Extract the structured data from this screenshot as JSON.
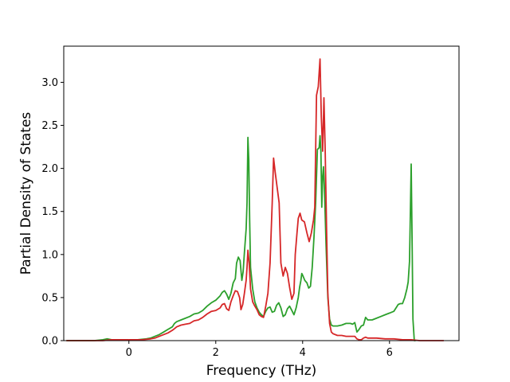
{
  "chart_data": {
    "type": "line",
    "title": "",
    "xlabel": "Frequency (THz)",
    "ylabel": "Partial Density of States",
    "xlim": [
      -1.5,
      7.6
    ],
    "ylim": [
      0.0,
      3.42
    ],
    "x_ticks": [
      0,
      2,
      4,
      6
    ],
    "x_tick_labels": [
      "0",
      "2",
      "4",
      "6"
    ],
    "y_ticks": [
      0.0,
      0.5,
      1.0,
      1.5,
      2.0,
      2.5,
      3.0
    ],
    "y_tick_labels": [
      "0.0",
      "0.5",
      "1.0",
      "1.5",
      "2.0",
      "2.5",
      "3.0"
    ],
    "grid": false,
    "series": [
      {
        "color": "#2ca02c",
        "points": [
          [
            -1.44,
            0.0
          ],
          [
            -0.8,
            0.0
          ],
          [
            -0.6,
            0.01
          ],
          [
            -0.5,
            0.02
          ],
          [
            -0.4,
            0.01
          ],
          [
            -0.2,
            0.01
          ],
          [
            0.0,
            0.01
          ],
          [
            0.2,
            0.01
          ],
          [
            0.4,
            0.02
          ],
          [
            0.5,
            0.03
          ],
          [
            0.6,
            0.05
          ],
          [
            0.7,
            0.07
          ],
          [
            0.8,
            0.1
          ],
          [
            0.9,
            0.13
          ],
          [
            1.0,
            0.16
          ],
          [
            1.05,
            0.2
          ],
          [
            1.1,
            0.22
          ],
          [
            1.2,
            0.24
          ],
          [
            1.3,
            0.26
          ],
          [
            1.4,
            0.28
          ],
          [
            1.5,
            0.31
          ],
          [
            1.6,
            0.32
          ],
          [
            1.7,
            0.35
          ],
          [
            1.8,
            0.4
          ],
          [
            1.9,
            0.44
          ],
          [
            2.0,
            0.47
          ],
          [
            2.1,
            0.52
          ],
          [
            2.15,
            0.56
          ],
          [
            2.2,
            0.58
          ],
          [
            2.25,
            0.54
          ],
          [
            2.3,
            0.48
          ],
          [
            2.35,
            0.55
          ],
          [
            2.4,
            0.67
          ],
          [
            2.45,
            0.72
          ],
          [
            2.48,
            0.9
          ],
          [
            2.52,
            0.97
          ],
          [
            2.56,
            0.93
          ],
          [
            2.6,
            0.7
          ],
          [
            2.63,
            0.8
          ],
          [
            2.66,
            1.02
          ],
          [
            2.7,
            1.3
          ],
          [
            2.72,
            1.6
          ],
          [
            2.74,
            2.36
          ],
          [
            2.76,
            2.1
          ],
          [
            2.78,
            1.4
          ],
          [
            2.8,
            0.85
          ],
          [
            2.85,
            0.6
          ],
          [
            2.9,
            0.45
          ],
          [
            2.95,
            0.38
          ],
          [
            3.0,
            0.33
          ],
          [
            3.05,
            0.3
          ],
          [
            3.1,
            0.28
          ],
          [
            3.15,
            0.34
          ],
          [
            3.2,
            0.38
          ],
          [
            3.25,
            0.39
          ],
          [
            3.3,
            0.33
          ],
          [
            3.35,
            0.34
          ],
          [
            3.4,
            0.41
          ],
          [
            3.45,
            0.44
          ],
          [
            3.5,
            0.38
          ],
          [
            3.55,
            0.28
          ],
          [
            3.6,
            0.3
          ],
          [
            3.65,
            0.37
          ],
          [
            3.7,
            0.4
          ],
          [
            3.75,
            0.35
          ],
          [
            3.8,
            0.3
          ],
          [
            3.85,
            0.38
          ],
          [
            3.9,
            0.5
          ],
          [
            3.93,
            0.62
          ],
          [
            3.96,
            0.7
          ],
          [
            3.98,
            0.78
          ],
          [
            4.0,
            0.76
          ],
          [
            4.05,
            0.7
          ],
          [
            4.1,
            0.67
          ],
          [
            4.14,
            0.61
          ],
          [
            4.18,
            0.63
          ],
          [
            4.22,
            0.85
          ],
          [
            4.26,
            1.2
          ],
          [
            4.3,
            1.6
          ],
          [
            4.34,
            2.22
          ],
          [
            4.38,
            2.24
          ],
          [
            4.4,
            2.38
          ],
          [
            4.42,
            2.2
          ],
          [
            4.44,
            1.55
          ],
          [
            4.46,
            1.9
          ],
          [
            4.48,
            2.02
          ],
          [
            4.5,
            1.8
          ],
          [
            4.54,
            1.1
          ],
          [
            4.58,
            0.5
          ],
          [
            4.62,
            0.25
          ],
          [
            4.66,
            0.18
          ],
          [
            4.7,
            0.17
          ],
          [
            4.8,
            0.17
          ],
          [
            4.9,
            0.18
          ],
          [
            5.0,
            0.2
          ],
          [
            5.1,
            0.2
          ],
          [
            5.15,
            0.19
          ],
          [
            5.2,
            0.21
          ],
          [
            5.25,
            0.1
          ],
          [
            5.3,
            0.13
          ],
          [
            5.35,
            0.17
          ],
          [
            5.4,
            0.18
          ],
          [
            5.45,
            0.27
          ],
          [
            5.5,
            0.24
          ],
          [
            5.6,
            0.24
          ],
          [
            5.7,
            0.26
          ],
          [
            5.8,
            0.28
          ],
          [
            5.9,
            0.3
          ],
          [
            6.0,
            0.32
          ],
          [
            6.1,
            0.34
          ],
          [
            6.15,
            0.38
          ],
          [
            6.2,
            0.42
          ],
          [
            6.25,
            0.43
          ],
          [
            6.3,
            0.43
          ],
          [
            6.35,
            0.5
          ],
          [
            6.4,
            0.6
          ],
          [
            6.43,
            0.68
          ],
          [
            6.46,
            0.92
          ],
          [
            6.48,
            1.5
          ],
          [
            6.5,
            2.05
          ],
          [
            6.52,
            1.2
          ],
          [
            6.54,
            0.25
          ],
          [
            6.57,
            0.0
          ],
          [
            6.6,
            0.0
          ]
        ]
      },
      {
        "color": "#d62728",
        "points": [
          [
            -1.44,
            0.0
          ],
          [
            -0.8,
            0.0
          ],
          [
            -0.6,
            0.0
          ],
          [
            -0.4,
            0.01
          ],
          [
            -0.2,
            0.01
          ],
          [
            0.0,
            0.01
          ],
          [
            0.2,
            0.01
          ],
          [
            0.3,
            0.01
          ],
          [
            0.5,
            0.02
          ],
          [
            0.6,
            0.03
          ],
          [
            0.7,
            0.05
          ],
          [
            0.8,
            0.07
          ],
          [
            0.9,
            0.09
          ],
          [
            1.0,
            0.12
          ],
          [
            1.05,
            0.14
          ],
          [
            1.1,
            0.16
          ],
          [
            1.2,
            0.18
          ],
          [
            1.3,
            0.19
          ],
          [
            1.4,
            0.2
          ],
          [
            1.5,
            0.23
          ],
          [
            1.6,
            0.24
          ],
          [
            1.7,
            0.27
          ],
          [
            1.8,
            0.31
          ],
          [
            1.9,
            0.34
          ],
          [
            2.0,
            0.35
          ],
          [
            2.1,
            0.38
          ],
          [
            2.15,
            0.42
          ],
          [
            2.2,
            0.43
          ],
          [
            2.25,
            0.37
          ],
          [
            2.3,
            0.35
          ],
          [
            2.35,
            0.45
          ],
          [
            2.4,
            0.52
          ],
          [
            2.45,
            0.58
          ],
          [
            2.5,
            0.57
          ],
          [
            2.55,
            0.5
          ],
          [
            2.58,
            0.36
          ],
          [
            2.62,
            0.42
          ],
          [
            2.66,
            0.55
          ],
          [
            2.7,
            0.7
          ],
          [
            2.72,
            0.85
          ],
          [
            2.74,
            1.05
          ],
          [
            2.77,
            0.9
          ],
          [
            2.8,
            0.6
          ],
          [
            2.85,
            0.45
          ],
          [
            2.9,
            0.4
          ],
          [
            2.95,
            0.36
          ],
          [
            3.0,
            0.3
          ],
          [
            3.05,
            0.28
          ],
          [
            3.1,
            0.27
          ],
          [
            3.15,
            0.4
          ],
          [
            3.2,
            0.55
          ],
          [
            3.25,
            0.9
          ],
          [
            3.3,
            1.6
          ],
          [
            3.33,
            2.12
          ],
          [
            3.37,
            1.95
          ],
          [
            3.42,
            1.75
          ],
          [
            3.46,
            1.6
          ],
          [
            3.5,
            0.9
          ],
          [
            3.55,
            0.75
          ],
          [
            3.6,
            0.85
          ],
          [
            3.65,
            0.78
          ],
          [
            3.7,
            0.62
          ],
          [
            3.75,
            0.48
          ],
          [
            3.8,
            0.55
          ],
          [
            3.83,
            1.0
          ],
          [
            3.87,
            1.25
          ],
          [
            3.9,
            1.42
          ],
          [
            3.94,
            1.48
          ],
          [
            3.98,
            1.4
          ],
          [
            4.04,
            1.38
          ],
          [
            4.1,
            1.25
          ],
          [
            4.15,
            1.15
          ],
          [
            4.2,
            1.25
          ],
          [
            4.25,
            1.4
          ],
          [
            4.28,
            1.55
          ],
          [
            4.32,
            2.85
          ],
          [
            4.36,
            2.95
          ],
          [
            4.4,
            3.27
          ],
          [
            4.43,
            2.6
          ],
          [
            4.46,
            2.2
          ],
          [
            4.49,
            2.82
          ],
          [
            4.52,
            2.2
          ],
          [
            4.55,
            1.3
          ],
          [
            4.58,
            0.55
          ],
          [
            4.62,
            0.2
          ],
          [
            4.66,
            0.1
          ],
          [
            4.7,
            0.08
          ],
          [
            4.8,
            0.06
          ],
          [
            4.9,
            0.06
          ],
          [
            5.0,
            0.05
          ],
          [
            5.1,
            0.05
          ],
          [
            5.2,
            0.05
          ],
          [
            5.25,
            0.02
          ],
          [
            5.3,
            0.01
          ],
          [
            5.35,
            0.01
          ],
          [
            5.4,
            0.03
          ],
          [
            5.45,
            0.04
          ],
          [
            5.5,
            0.03
          ],
          [
            5.7,
            0.03
          ],
          [
            5.9,
            0.02
          ],
          [
            6.1,
            0.02
          ],
          [
            6.3,
            0.01
          ],
          [
            6.5,
            0.01
          ],
          [
            6.7,
            0.0
          ],
          [
            7.0,
            0.0
          ],
          [
            7.25,
            0.0
          ]
        ]
      }
    ]
  }
}
